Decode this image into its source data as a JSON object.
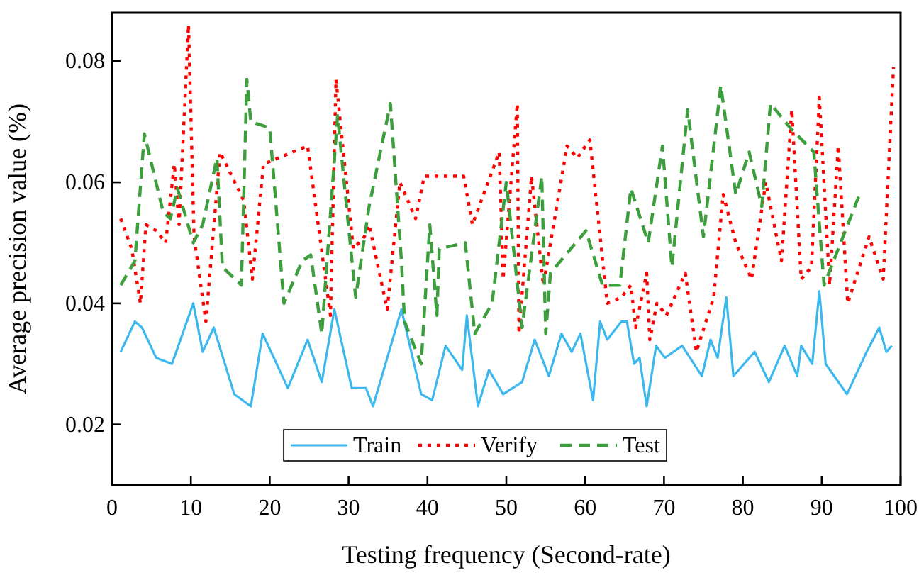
{
  "chart_data": {
    "type": "line",
    "xlabel": "Testing frequency (Second-rate)",
    "ylabel": "Average precision value (%)",
    "xlim": [
      0,
      100
    ],
    "xticks": [
      0,
      10,
      20,
      30,
      40,
      50,
      60,
      70,
      80,
      90,
      100
    ],
    "ylim": [
      0.01,
      0.088
    ],
    "yticks": [
      {
        "value": 0.02,
        "label": "0.02"
      },
      {
        "value": 0.04,
        "label": "0.04"
      },
      {
        "value": 0.06,
        "label": "0.06"
      },
      {
        "value": 0.08,
        "label": "0.08"
      }
    ],
    "grid": false,
    "legend": "bottom",
    "marker": "none",
    "series": [
      {
        "name": "Train",
        "color": "#3cb8ee",
        "line_style": "solid",
        "x": [
          1.1,
          2.9,
          3.8,
          5.6,
          7.6,
          10.3,
          11.5,
          12.9,
          15.5,
          17.6,
          19.1,
          22.3,
          24.8,
          26.6,
          28.2,
          30.4,
          32.2,
          33.1,
          36.7,
          39.2,
          40.6,
          42.3,
          44.4,
          45,
          46.4,
          47.8,
          49.6,
          52,
          53.6,
          55.4,
          57,
          58.3,
          59.4,
          61,
          61.9,
          62.8,
          64.6,
          65.3,
          66.2,
          66.9,
          67.8,
          69,
          70.1,
          72.3,
          74.8,
          75.9,
          76.8,
          77.9,
          78.8,
          81.5,
          83.3,
          85.3,
          86.9,
          87.4,
          88.8,
          89.7,
          90.5,
          93.2,
          95.7,
          97.3,
          98.2,
          98.9
        ],
        "values": [
          0.032,
          0.037,
          0.036,
          0.031,
          0.03,
          0.04,
          0.032,
          0.036,
          0.025,
          0.023,
          0.035,
          0.026,
          0.034,
          0.027,
          0.039,
          0.026,
          0.026,
          0.023,
          0.039,
          0.025,
          0.024,
          0.033,
          0.029,
          0.038,
          0.023,
          0.029,
          0.025,
          0.027,
          0.034,
          0.028,
          0.035,
          0.032,
          0.035,
          0.024,
          0.037,
          0.034,
          0.037,
          0.037,
          0.03,
          0.031,
          0.023,
          0.033,
          0.031,
          0.033,
          0.028,
          0.034,
          0.031,
          0.041,
          0.028,
          0.032,
          0.027,
          0.033,
          0.028,
          0.033,
          0.03,
          0.042,
          0.03,
          0.025,
          0.032,
          0.036,
          0.032,
          0.033
        ]
      },
      {
        "name": "Verify",
        "color": "#ff0000",
        "line_style": "dotted",
        "x": [
          1.1,
          2.5,
          3.6,
          4.3,
          5.6,
          6.8,
          7.9,
          8.5,
          9.7,
          10.4,
          11.9,
          13.7,
          16.7,
          17.8,
          19.2,
          24.8,
          27.7,
          28.4,
          30.6,
          32,
          32.6,
          34.9,
          36.5,
          38.5,
          39.6,
          42.8,
          44.6,
          45.7,
          49.1,
          49.6,
          51.4,
          51.6,
          53.2,
          54.7,
          57.7,
          59,
          60.6,
          62.8,
          64.6,
          65.8,
          66.4,
          67.8,
          68.2,
          69.1,
          70.3,
          72.7,
          74.1,
          76.3,
          77.5,
          79.1,
          81.1,
          82.9,
          84.9,
          86.2,
          87.4,
          88.7,
          89.7,
          91,
          92.1,
          93.3,
          96,
          97.8,
          99.1
        ],
        "values": [
          0.054,
          0.049,
          0.04,
          0.053,
          0.052,
          0.05,
          0.063,
          0.053,
          0.086,
          0.051,
          0.037,
          0.065,
          0.057,
          0.044,
          0.063,
          0.066,
          0.038,
          0.077,
          0.049,
          0.051,
          0.053,
          0.039,
          0.06,
          0.054,
          0.061,
          0.061,
          0.061,
          0.053,
          0.065,
          0.044,
          0.073,
          0.035,
          0.061,
          0.043,
          0.066,
          0.064,
          0.067,
          0.04,
          0.041,
          0.043,
          0.036,
          0.045,
          0.034,
          0.04,
          0.038,
          0.045,
          0.032,
          0.041,
          0.058,
          0.05,
          0.044,
          0.06,
          0.047,
          0.072,
          0.044,
          0.046,
          0.074,
          0.043,
          0.066,
          0.04,
          0.051,
          0.044,
          0.079
        ]
      },
      {
        "name": "Test",
        "color": "#3c9e3c",
        "line_style": "dashed",
        "x": [
          1.1,
          2.9,
          4.1,
          6.5,
          7.4,
          8.3,
          10.3,
          11.5,
          13.3,
          14,
          16.4,
          17.1,
          17.6,
          20,
          21.8,
          24.1,
          25.2,
          26.6,
          28.6,
          30.2,
          30.9,
          32.6,
          35.3,
          36.7,
          37.1,
          39.2,
          40.3,
          41.2,
          41.5,
          44.8,
          46,
          48.2,
          50,
          52,
          54.5,
          55,
          55.6,
          60.1,
          62.2,
          64.4,
          65.8,
          68,
          69.8,
          71,
          73,
          75,
          77.2,
          79.1,
          80.8,
          82.4,
          83.5,
          86,
          89,
          90.3,
          94.8
        ],
        "values": [
          0.043,
          0.047,
          0.068,
          0.055,
          0.054,
          0.059,
          0.05,
          0.053,
          0.064,
          0.046,
          0.043,
          0.077,
          0.07,
          0.069,
          0.04,
          0.047,
          0.048,
          0.035,
          0.071,
          0.05,
          0.041,
          0.056,
          0.073,
          0.047,
          0.037,
          0.03,
          0.053,
          0.038,
          0.049,
          0.05,
          0.035,
          0.04,
          0.06,
          0.036,
          0.061,
          0.035,
          0.045,
          0.052,
          0.043,
          0.043,
          0.059,
          0.05,
          0.066,
          0.046,
          0.072,
          0.051,
          0.076,
          0.058,
          0.065,
          0.056,
          0.073,
          0.069,
          0.065,
          0.043,
          0.058
        ]
      }
    ]
  }
}
